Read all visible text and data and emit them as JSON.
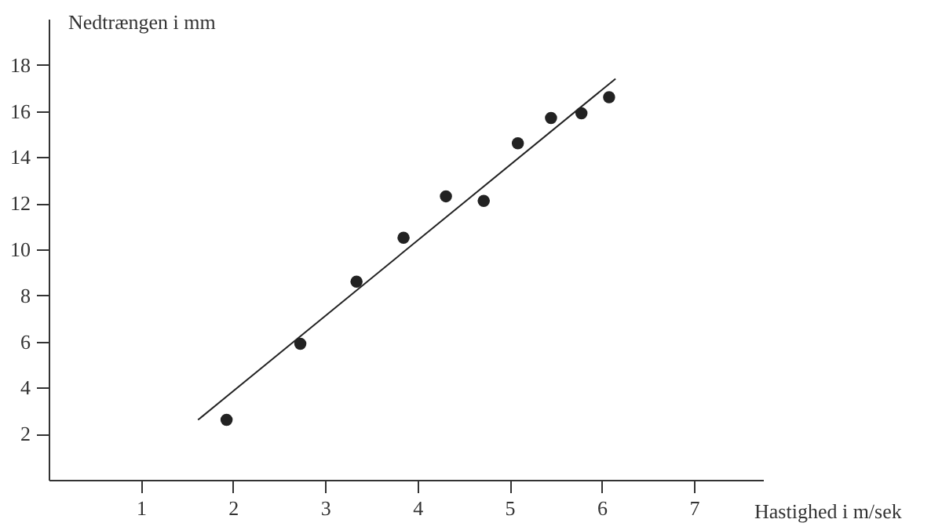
{
  "chart_data": {
    "type": "scatter",
    "xlabel": "Hastighed i m/sek",
    "ylabel": "Nedtrængen i mm",
    "xlim": [
      0,
      7.75
    ],
    "ylim": [
      0,
      20
    ],
    "xticks": [
      1,
      2,
      3,
      4,
      5,
      6,
      7
    ],
    "yticks": [
      2,
      4,
      6,
      8,
      10,
      12,
      14,
      16,
      18
    ],
    "grid": false,
    "series": [
      {
        "color": "#222222",
        "marker": "circle",
        "x": [
          1.93,
          2.73,
          3.34,
          3.85,
          4.31,
          4.72,
          5.09,
          5.45,
          5.78,
          6.08
        ],
        "values": [
          2.6,
          5.9,
          8.6,
          10.5,
          12.3,
          12.1,
          14.6,
          15.7,
          15.9,
          16.6
        ]
      },
      {
        "type": "line",
        "color": "#222222",
        "line_style": "solid",
        "x": [
          1.62,
          6.15
        ],
        "values": [
          2.6,
          17.4
        ]
      }
    ]
  }
}
